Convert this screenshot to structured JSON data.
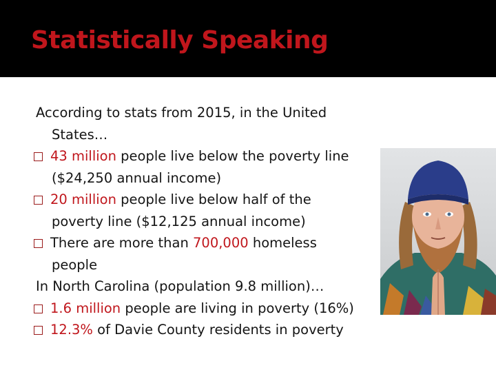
{
  "slide": {
    "title": "Statistically Speaking",
    "intro_1": "According to stats from 2015, in the United",
    "intro_2": "States…",
    "b1_hl": "43 million",
    "b1_rest": " people live below the poverty line",
    "b1_cont": "($24,250 annual income)",
    "b2_hl": "20 million",
    "b2_rest": " people live below half of the",
    "b2_cont": "poverty line ($12,125 annual income)",
    "b3_pre": "There are more than ",
    "b3_hl": "700,000",
    "b3_rest": " homeless",
    "b3_cont": "people",
    "nc_intro": "In North Carolina (population 9.8 million)…",
    "b4_hl": "1.6 million",
    "b4_rest": " people are living in poverty (16%)",
    "b5_hl": "12.3%",
    "b5_rest": " of Davie County residents in poverty"
  },
  "colors": {
    "title": "#c0161c",
    "highlight": "#c0161c",
    "header_band": "#000000",
    "body_text": "#141414"
  },
  "photo": {
    "icon": "portrait-photo"
  }
}
